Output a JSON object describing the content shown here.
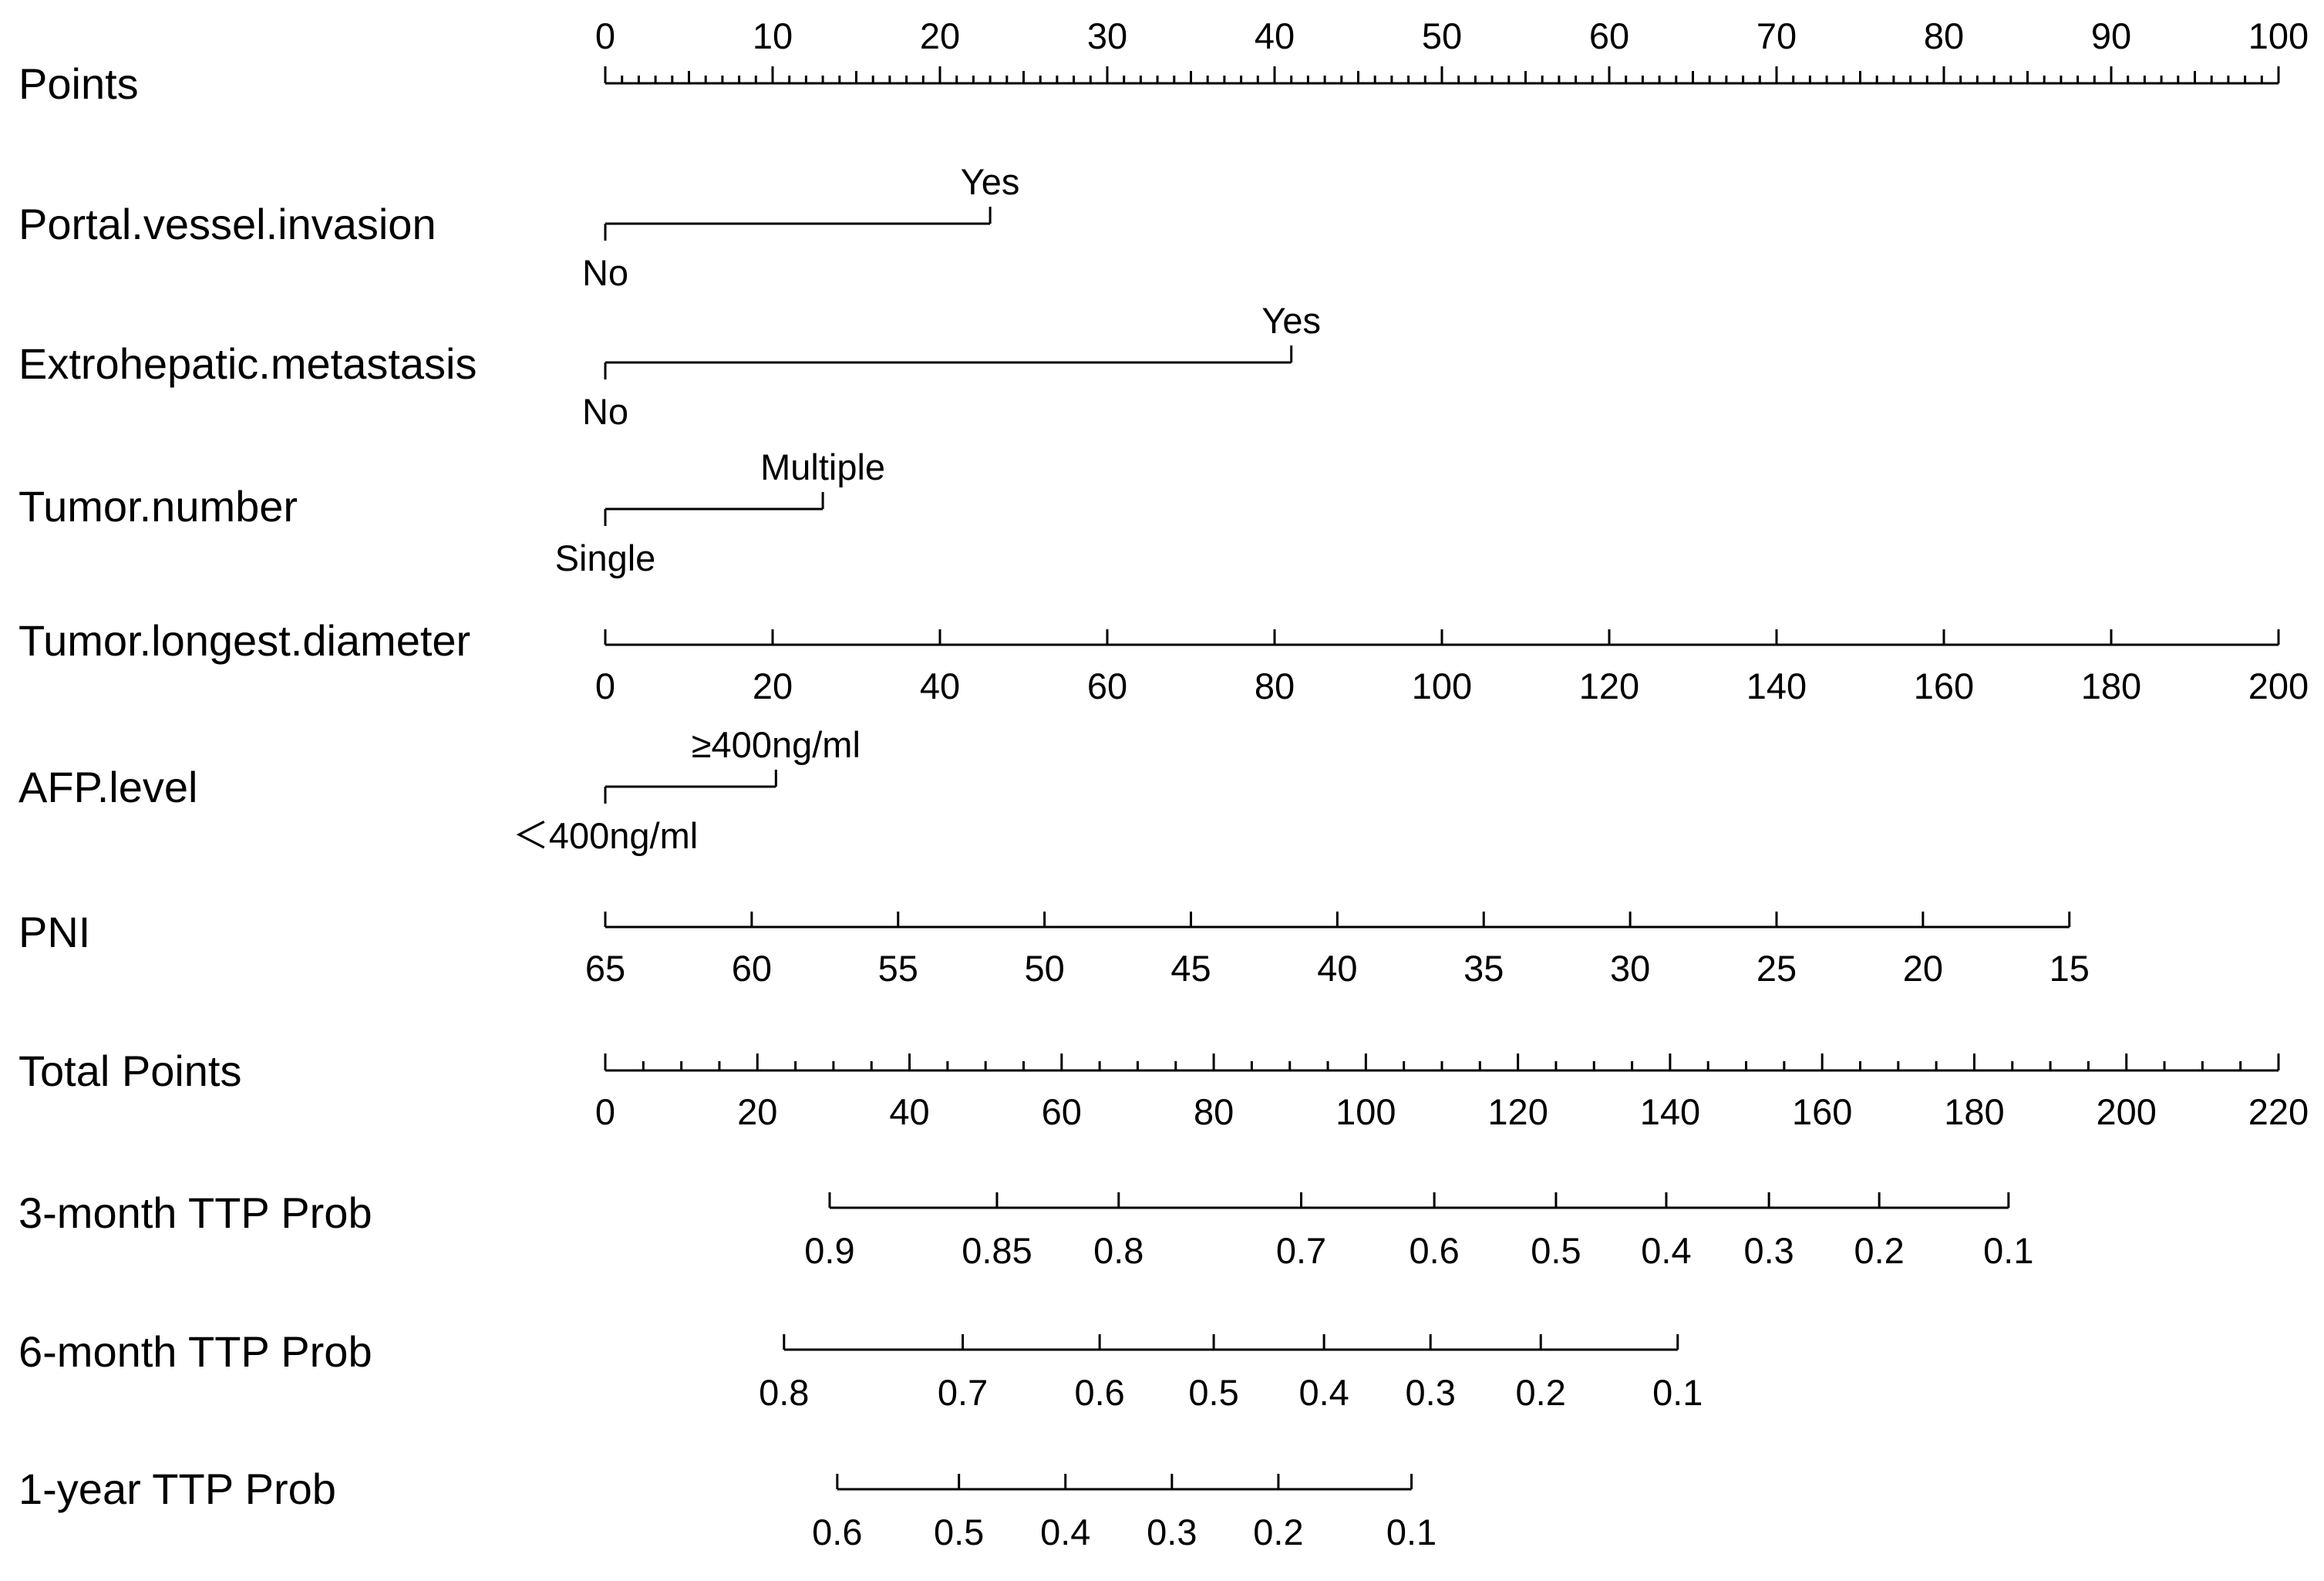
{
  "chart_data": {
    "type": "nomogram",
    "points_scale": {
      "min": 0,
      "max": 100
    },
    "rows": [
      {
        "id": "points",
        "label": "Points",
        "kind": "points",
        "ticks": [
          0,
          10,
          20,
          30,
          40,
          50,
          60,
          70,
          80,
          90,
          100
        ],
        "minor_step": 1
      },
      {
        "id": "portal",
        "label": "Portal.vessel.invasion",
        "kind": "categorical",
        "levels": [
          {
            "label": "No",
            "points": 0,
            "pos": "below"
          },
          {
            "label": "Yes",
            "points": 23,
            "pos": "above"
          }
        ]
      },
      {
        "id": "extra",
        "label": "Extrohepatic.metastasis",
        "kind": "categorical",
        "levels": [
          {
            "label": "No",
            "points": 0,
            "pos": "below"
          },
          {
            "label": "Yes",
            "points": 41,
            "pos": "above"
          }
        ]
      },
      {
        "id": "tnum",
        "label": "Tumor.number",
        "kind": "categorical",
        "levels": [
          {
            "label": "Single",
            "points": 0,
            "pos": "below"
          },
          {
            "label": "Multiple",
            "points": 13,
            "pos": "above"
          }
        ]
      },
      {
        "id": "tdiam",
        "label": "Tumor.longest.diameter",
        "kind": "continuous",
        "labels": "below",
        "ticks": [
          {
            "v": 0,
            "p": 0
          },
          {
            "v": 20,
            "p": 10
          },
          {
            "v": 40,
            "p": 20
          },
          {
            "v": 60,
            "p": 30
          },
          {
            "v": 80,
            "p": 40
          },
          {
            "v": 100,
            "p": 50
          },
          {
            "v": 120,
            "p": 60
          },
          {
            "v": 140,
            "p": 70
          },
          {
            "v": 160,
            "p": 80
          },
          {
            "v": 180,
            "p": 90
          },
          {
            "v": 200,
            "p": 100
          }
        ]
      },
      {
        "id": "afp",
        "label": "AFP.level",
        "kind": "categorical",
        "levels": [
          {
            "label": "＜400ng/ml",
            "points": 0,
            "pos": "below"
          },
          {
            "label": "≥400ng/ml",
            "points": 10.2,
            "pos": "above"
          }
        ]
      },
      {
        "id": "pni",
        "label": "PNI",
        "kind": "continuous",
        "labels": "below",
        "ticks": [
          {
            "v": 65,
            "p": 0
          },
          {
            "v": 60,
            "p": 8.75
          },
          {
            "v": 55,
            "p": 17.5
          },
          {
            "v": 50,
            "p": 26.25
          },
          {
            "v": 45,
            "p": 35
          },
          {
            "v": 40,
            "p": 43.75
          },
          {
            "v": 35,
            "p": 52.5
          },
          {
            "v": 30,
            "p": 61.25
          },
          {
            "v": 25,
            "p": 70
          },
          {
            "v": 20,
            "p": 78.75
          },
          {
            "v": 15,
            "p": 87.5
          }
        ]
      },
      {
        "id": "total",
        "label": "Total Points",
        "kind": "total",
        "max": 220,
        "ticks": [
          0,
          20,
          40,
          60,
          80,
          100,
          120,
          140,
          160,
          180,
          200,
          220
        ],
        "minor_step": 5
      },
      {
        "id": "p3",
        "label": "3-month TTP Prob",
        "kind": "probability",
        "ticks": [
          {
            "v": "0.9",
            "t": 29.5
          },
          {
            "v": "0.85",
            "t": 51.5
          },
          {
            "v": "0.8",
            "t": 67.5
          },
          {
            "v": "0.7",
            "t": 91.5
          },
          {
            "v": "0.6",
            "t": 109
          },
          {
            "v": "0.5",
            "t": 125
          },
          {
            "v": "0.4",
            "t": 139.5
          },
          {
            "v": "0.3",
            "t": 153
          },
          {
            "v": "0.2",
            "t": 167.5
          },
          {
            "v": "0.1",
            "t": 184.5
          }
        ]
      },
      {
        "id": "p6",
        "label": "6-month TTP Prob",
        "kind": "probability",
        "ticks": [
          {
            "v": "0.8",
            "t": 23.5
          },
          {
            "v": "0.7",
            "t": 47
          },
          {
            "v": "0.6",
            "t": 65
          },
          {
            "v": "0.5",
            "t": 80
          },
          {
            "v": "0.4",
            "t": 94.5
          },
          {
            "v": "0.3",
            "t": 108.5
          },
          {
            "v": "0.2",
            "t": 123
          },
          {
            "v": "0.1",
            "t": 141
          }
        ]
      },
      {
        "id": "p1y",
        "label": "1-year TTP Prob",
        "kind": "probability",
        "ticks": [
          {
            "v": "0.6",
            "t": 30.5
          },
          {
            "v": "0.5",
            "t": 46.5
          },
          {
            "v": "0.4",
            "t": 60.5
          },
          {
            "v": "0.3",
            "t": 74.5
          },
          {
            "v": "0.2",
            "t": 88.5
          },
          {
            "v": "0.1",
            "t": 106
          }
        ]
      }
    ]
  }
}
